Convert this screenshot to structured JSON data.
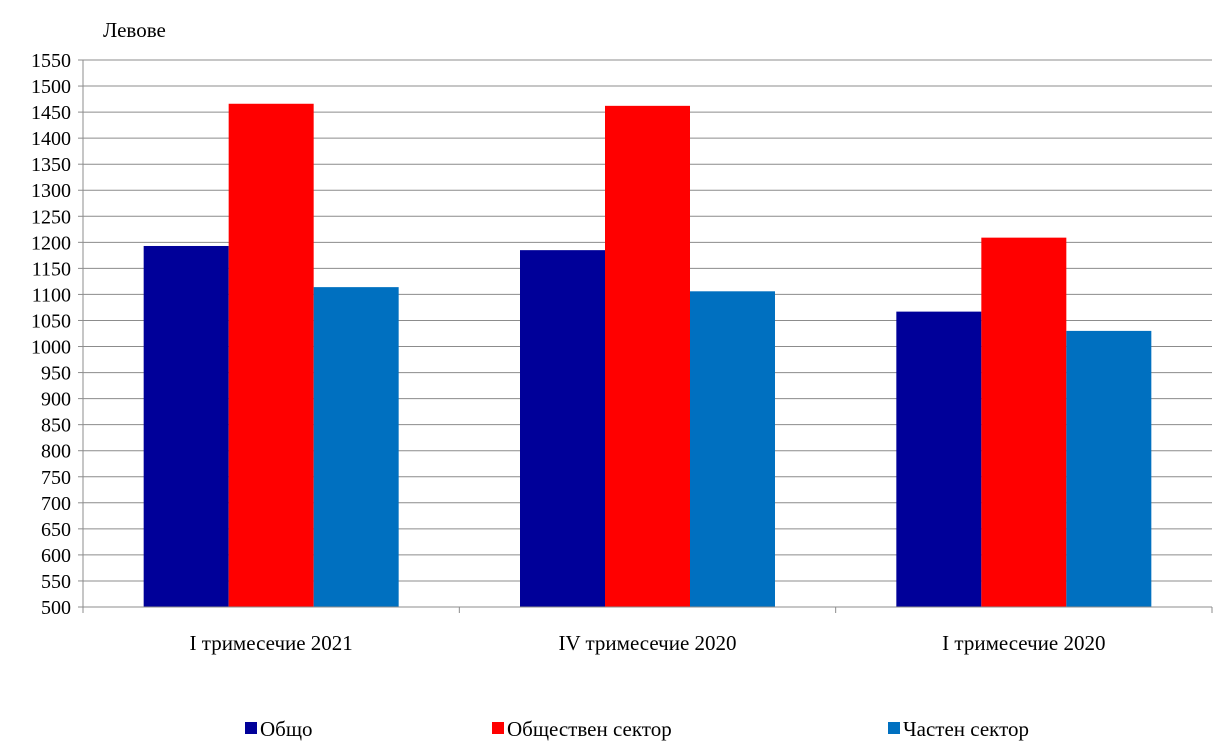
{
  "chart_data": {
    "type": "bar",
    "title": "",
    "xlabel": "",
    "ylabel": "Левове",
    "ylim": [
      500,
      1550
    ],
    "ytick_step": 50,
    "yticks": [
      "500",
      "550",
      "600",
      "650",
      "700",
      "750",
      "800",
      "850",
      "900",
      "950",
      "1000",
      "1050",
      "1100",
      "1150",
      "1200",
      "1250",
      "1300",
      "1350",
      "1400",
      "1450",
      "1500",
      "1550"
    ],
    "grid": true,
    "legend_position": "bottom",
    "categories": [
      "I тримесечие 2021",
      "IV тримесечие 2020",
      "I тримесечие 2020"
    ],
    "series": [
      {
        "name": "Общо",
        "color": "#000099",
        "values": [
          1193,
          1185,
          1067
        ]
      },
      {
        "name": "Обществен сектор",
        "color": "#ff0000",
        "values": [
          1466,
          1462,
          1209
        ]
      },
      {
        "name": "Частен сектор",
        "color": "#0070c0",
        "values": [
          1114,
          1106,
          1030
        ]
      }
    ]
  }
}
